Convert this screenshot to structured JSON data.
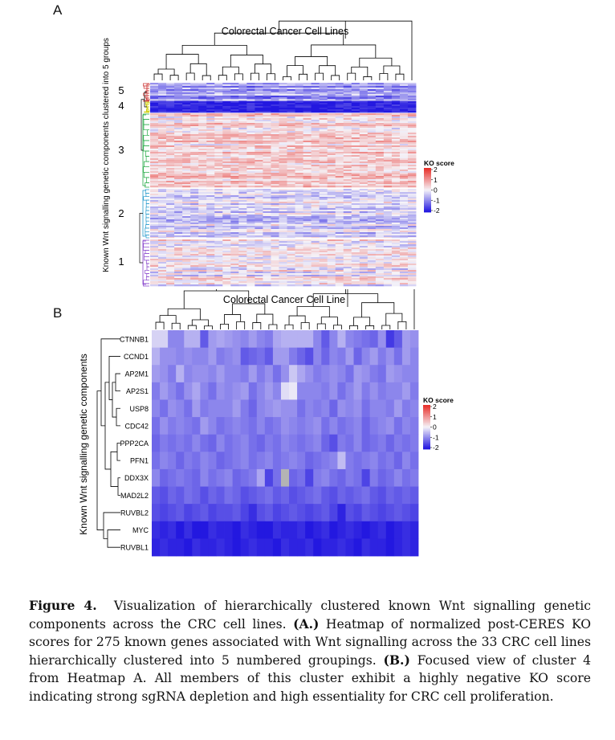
{
  "panel_a": {
    "letter": "A",
    "title": "Colorectal Cancer Cell Lines",
    "y_axis_label": "Known Wnt signalling genetic components clustered into 5 groups",
    "cluster_labels": [
      "5",
      "4",
      "3",
      "2",
      "1"
    ],
    "legend": {
      "title": "KO score",
      "ticks": [
        "2",
        "1",
        "0",
        "-1",
        "-2"
      ]
    }
  },
  "panel_b": {
    "letter": "B",
    "title": "Colorectal Cancer Cell Line",
    "y_axis_label": "Known Wnt signalling genetic components",
    "legend": {
      "title": "KO score",
      "ticks": [
        "2",
        "1",
        "0",
        "-1",
        "-2"
      ]
    }
  },
  "colors": {
    "high": "#e8302a",
    "mid": "#f5f3f8",
    "low": "#2318e0",
    "missing": "#b4b4b4"
  },
  "caption": {
    "label": "Figure 4.",
    "intro": "Visualization of hierarchically clustered known Wnt signalling genetic components across the CRC cell lines.",
    "a_label": "(A.)",
    "a_text": "Heatmap of normalized post-CERES KO scores for 275 known genes associated with Wnt signalling across the 33 CRC cell lines hierarchically clustered into 5 numbered groupings.",
    "b_label": "(B.)",
    "b_text": "Focused view of cluster 4 from Heatmap A. All members of this cluster exhibit a highly negative KO score indicating strong sgRNA depletion and high essentiality for CRC cell proliferation."
  },
  "chart_data": [
    {
      "type": "heatmap",
      "title": "Colorectal Cancer Cell Lines",
      "xlabel": "",
      "ylabel": "Known Wnt signalling genetic components clustered into 5 groups",
      "n_columns": 33,
      "n_genes": 275,
      "clusters": [
        {
          "label": "5",
          "mean_ko_score": -0.8
        },
        {
          "label": "4",
          "mean_ko_score": -1.8
        },
        {
          "label": "3",
          "mean_ko_score": 0.3
        },
        {
          "label": "2",
          "mean_ko_score": -0.3
        },
        {
          "label": "1",
          "mean_ko_score": 0.0
        }
      ],
      "color_scale": {
        "label": "KO score",
        "range": [
          -2,
          2
        ]
      }
    },
    {
      "type": "heatmap",
      "title": "Colorectal Cancer Cell Line",
      "xlabel": "",
      "ylabel": "Known Wnt signalling genetic components",
      "n_columns": 33,
      "rows": [
        "CTNNB1",
        "CCND1",
        "AP2M1",
        "AP2S1",
        "USP8",
        "CDC42",
        "PPP2CA",
        "PFN1",
        "DDX3X",
        "MAD2L2",
        "RUVBL2",
        "MYC",
        "RUVBL1"
      ],
      "values": [
        [
          -0.3,
          -0.3,
          -1.0,
          -1.0,
          -0.6,
          -0.6,
          -1.4,
          -0.8,
          -0.7,
          -0.8,
          -0.9,
          -1.0,
          -0.8,
          -1.0,
          -1.1,
          -0.7,
          -0.6,
          -0.6,
          -0.6,
          -0.6,
          -1.0,
          -1.4,
          -1.0,
          -0.6,
          -1.0,
          -1.1,
          -1.2,
          -1.3,
          -0.9,
          -1.7,
          -1.4,
          -0.8,
          -0.9
        ],
        [
          -0.6,
          -0.9,
          -0.9,
          -1.0,
          -0.9,
          -1.0,
          -1.0,
          -0.8,
          -1.1,
          -1.0,
          -0.9,
          -1.4,
          -1.3,
          -1.2,
          -1.4,
          -0.8,
          -0.8,
          -1.1,
          -1.3,
          -1.5,
          -1.0,
          -1.3,
          -1.0,
          -1.1,
          -0.8,
          -1.3,
          -1.0,
          -0.8,
          -1.1,
          -0.9,
          -1.2,
          -0.8,
          -1.0
        ],
        [
          -0.8,
          -0.9,
          -1.1,
          -0.6,
          -1.0,
          -0.9,
          -0.9,
          -1.0,
          -0.8,
          -1.0,
          -1.0,
          -1.1,
          -0.8,
          -1.1,
          -0.9,
          -1.2,
          -0.9,
          -0.4,
          -0.7,
          -0.9,
          -1.1,
          -1.0,
          -0.9,
          -1.0,
          -1.2,
          -0.8,
          -0.9,
          -1.1,
          -1.2,
          -0.8,
          -0.9,
          -1.0,
          -1.0
        ],
        [
          -1.1,
          -0.8,
          -1.0,
          -1.2,
          -0.9,
          -0.7,
          -1.0,
          -1.2,
          -0.9,
          -1.0,
          -0.9,
          -0.8,
          -1.2,
          -1.0,
          -0.8,
          -1.0,
          -0.2,
          -0.1,
          -1.0,
          -1.0,
          -1.0,
          -1.1,
          -0.9,
          -1.2,
          -1.0,
          -0.8,
          -1.1,
          -0.9,
          -1.1,
          -1.0,
          -1.0,
          -0.8,
          -1.1
        ],
        [
          -1.0,
          -1.2,
          -0.9,
          -1.0,
          -1.2,
          -0.8,
          -1.1,
          -1.0,
          -1.0,
          -1.0,
          -0.8,
          -1.1,
          -1.3,
          -1.0,
          -0.9,
          -0.8,
          -0.9,
          -0.9,
          -1.2,
          -1.0,
          -1.1,
          -1.0,
          -1.3,
          -0.9,
          -1.0,
          -0.9,
          -1.2,
          -1.0,
          -1.0,
          -1.1,
          -0.8,
          -1.1,
          -1.0
        ],
        [
          -1.2,
          -0.9,
          -1.1,
          -1.0,
          -1.1,
          -1.2,
          -0.8,
          -1.0,
          -1.2,
          -1.1,
          -1.0,
          -1.1,
          -1.2,
          -1.0,
          -1.2,
          -1.1,
          -0.9,
          -1.0,
          -1.1,
          -1.0,
          -0.9,
          -1.2,
          -1.0,
          -1.2,
          -1.1,
          -1.0,
          -1.3,
          -1.1,
          -1.0,
          -0.9,
          -1.2,
          -1.0,
          -1.1
        ],
        [
          -1.3,
          -1.1,
          -1.2,
          -1.1,
          -1.2,
          -1.0,
          -1.2,
          -1.3,
          -1.0,
          -1.2,
          -1.1,
          -1.0,
          -1.2,
          -1.3,
          -1.1,
          -1.2,
          -1.0,
          -1.1,
          -1.2,
          -1.1,
          -1.0,
          -1.3,
          -1.5,
          -1.1,
          -1.2,
          -1.0,
          -1.3,
          -1.2,
          -1.1,
          -1.3,
          -1.1,
          -1.2,
          -1.1
        ],
        [
          -1.2,
          -1.0,
          -1.1,
          -1.3,
          -1.1,
          -1.2,
          -1.0,
          -1.1,
          -1.3,
          -1.2,
          -1.1,
          -1.0,
          -1.2,
          -1.1,
          -1.0,
          -1.2,
          -1.1,
          -1.0,
          -1.1,
          -1.3,
          -1.2,
          -1.1,
          -1.0,
          -0.5,
          -1.1,
          -1.2,
          -1.1,
          -1.0,
          -1.2,
          -1.1,
          -1.3,
          -1.0,
          -1.2
        ],
        [
          -1.0,
          -1.3,
          -1.2,
          -1.1,
          -1.2,
          -1.3,
          -1.0,
          -1.2,
          -1.1,
          -1.0,
          -1.3,
          -1.2,
          -1.1,
          -0.7,
          -1.6,
          -1.2,
          -1.0,
          -1.3,
          -1.2,
          -1.6,
          -1.1,
          -1.0,
          -1.2,
          -1.3,
          -1.1,
          -1.2,
          -1.6,
          -1.1,
          -1.3,
          -1.2,
          -1.0,
          -1.2,
          -1.1
        ],
        [
          -1.4,
          -1.5,
          -1.3,
          -1.4,
          -1.2,
          -1.3,
          -1.5,
          -1.3,
          -1.4,
          -1.2,
          -1.3,
          -1.5,
          -1.4,
          -1.3,
          -1.2,
          -1.4,
          -1.3,
          -1.5,
          -1.4,
          -1.3,
          -1.2,
          -1.4,
          -1.5,
          -1.3,
          -1.4,
          -1.3,
          -1.2,
          -1.4,
          -1.5,
          -1.3,
          -1.4,
          -1.3,
          -1.4
        ],
        [
          -1.5,
          -1.6,
          -1.5,
          -1.4,
          -1.6,
          -1.5,
          -1.4,
          -1.6,
          -1.5,
          -1.5,
          -1.4,
          -1.6,
          -1.8,
          -1.5,
          -1.4,
          -1.6,
          -1.5,
          -1.4,
          -1.5,
          -1.6,
          -1.5,
          -1.4,
          -1.6,
          -1.9,
          -1.5,
          -1.6,
          -1.4,
          -1.5,
          -1.6,
          -1.5,
          -1.4,
          -1.5,
          -1.6
        ],
        [
          -1.8,
          -1.9,
          -1.8,
          -2.0,
          -1.8,
          -2.0,
          -2.0,
          -1.8,
          -1.9,
          -1.9,
          -2.0,
          -1.8,
          -1.9,
          -2.0,
          -2.0,
          -1.8,
          -1.9,
          -1.9,
          -1.8,
          -2.0,
          -1.9,
          -1.8,
          -2.0,
          -1.9,
          -1.8,
          -1.9,
          -2.0,
          -1.9,
          -1.8,
          -2.0,
          -1.9,
          -1.8,
          -1.9
        ],
        [
          -1.9,
          -1.8,
          -1.9,
          -1.9,
          -2.0,
          -1.8,
          -1.9,
          -1.9,
          -1.8,
          -1.9,
          -2.0,
          -1.9,
          -1.8,
          -1.9,
          -1.9,
          -2.0,
          -1.8,
          -1.9,
          -1.9,
          -1.8,
          -2.0,
          -1.9,
          -1.9,
          -1.8,
          -1.9,
          -2.0,
          -1.8,
          -1.9,
          -1.9,
          -2.0,
          -1.9,
          -1.8,
          -1.9
        ]
      ],
      "missing_cells": [
        [
          8,
          16
        ]
      ],
      "color_scale": {
        "label": "KO score",
        "range": [
          -2,
          2
        ]
      }
    }
  ]
}
